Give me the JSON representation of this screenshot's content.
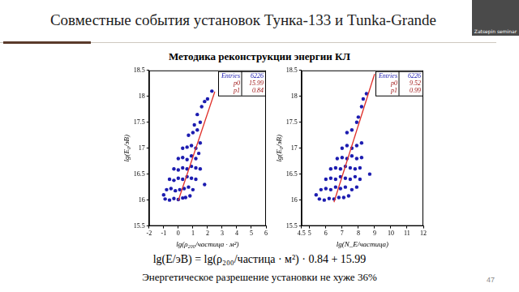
{
  "slide": {
    "title": "Совместные события установок Тунка-133 и Tunka-Grande",
    "subtitle": "Методика реконструкции энергии КЛ",
    "formula": "lg(E/эВ) = lg(ρ₂₀₀/частица · м²) · 0.84 + 15.99",
    "note": "Энергетическое разрешение установки не хуже 36%",
    "page": "47",
    "webcam_label": "Zatsepin seminar"
  },
  "chart_data": [
    {
      "type": "scatter",
      "x_label": "lg(ρ₂₀₀/частица · м²)",
      "y_label": "lg(E₀/эВ)",
      "xlim": [
        -2,
        6
      ],
      "xticks": [
        -2,
        -1,
        0,
        1,
        2,
        3,
        4,
        5,
        6
      ],
      "ylim": [
        15.5,
        18.5
      ],
      "yticks": [
        15.5,
        16,
        16.5,
        17,
        17.5,
        18,
        18.5
      ],
      "grid": false,
      "stats": [
        {
          "label": "Entries",
          "value": 6226
        },
        {
          "label": "p0",
          "value": 15.99
        },
        {
          "label": "p1",
          "value": 0.84
        }
      ],
      "series": [
        {
          "type": "scatter",
          "color": "#1c1cb0",
          "marker": "circle",
          "x": [
            -0.9,
            -0.6,
            -0.3,
            0,
            0.3,
            0.5,
            0.8,
            -0.8,
            -0.5,
            -0.2,
            0.1,
            0.4,
            0.7,
            1.0,
            -0.6,
            -0.3,
            0,
            0.3,
            0.6,
            0.9,
            1.2,
            -0.3,
            0,
            0.3,
            0.6,
            0.9,
            1.2,
            1.5,
            0,
            0.3,
            0.6,
            0.9,
            1.2,
            1.4,
            0.3,
            0.6,
            0.9,
            1.2,
            1.5,
            0.7,
            1.0,
            1.3,
            1.1,
            1.5,
            1.3,
            1.6,
            1.8,
            2.0,
            2.3,
            -1.0,
            1.8
          ],
          "values": [
            16.02,
            16.0,
            16.03,
            16.01,
            16.04,
            16.05,
            16.08,
            16.2,
            16.22,
            16.18,
            16.2,
            16.22,
            16.25,
            16.2,
            16.4,
            16.38,
            16.42,
            16.4,
            16.45,
            16.42,
            16.4,
            16.6,
            16.58,
            16.62,
            16.6,
            16.65,
            16.62,
            16.6,
            16.8,
            16.82,
            16.78,
            16.85,
            16.8,
            16.9,
            17.0,
            17.02,
            17.05,
            17.0,
            17.1,
            17.25,
            17.3,
            17.35,
            17.45,
            17.5,
            17.65,
            17.8,
            17.9,
            17.95,
            18.1,
            16.1,
            16.3
          ]
        },
        {
          "type": "line",
          "color": "#e0302a",
          "line_style": "solid",
          "x": [
            0,
            2.5
          ],
          "values": [
            15.99,
            18.09
          ]
        }
      ]
    },
    {
      "type": "scatter",
      "x_label": "lg(N_E/частица)",
      "y_label": "lg(E₀/эВ)",
      "xlim": [
        4.5,
        12
      ],
      "xticks": [
        4.5,
        5,
        6,
        7,
        8,
        9,
        10,
        11,
        12
      ],
      "ylim": [
        15.5,
        18.5
      ],
      "yticks": [
        15.5,
        16,
        16.5,
        17,
        17.5,
        18,
        18.5
      ],
      "grid": false,
      "stats": [
        {
          "label": "Entries",
          "value": 6226
        },
        {
          "label": "p0",
          "value": 9.52
        },
        {
          "label": "p1",
          "value": 0.99
        }
      ],
      "series": [
        {
          "type": "scatter",
          "color": "#1c1cb0",
          "marker": "circle",
          "x": [
            5.6,
            5.9,
            6.2,
            6.5,
            6.8,
            7.1,
            7.4,
            5.7,
            6.0,
            6.3,
            6.6,
            6.9,
            7.2,
            7.6,
            7.9,
            6.0,
            6.3,
            6.6,
            6.9,
            7.2,
            7.5,
            7.8,
            8.1,
            6.3,
            6.6,
            6.9,
            7.2,
            7.5,
            7.8,
            8.1,
            6.7,
            7.0,
            7.3,
            7.6,
            7.9,
            8.2,
            7.0,
            7.3,
            7.6,
            7.9,
            8.2,
            7.3,
            7.6,
            7.9,
            8.0,
            8.2,
            8.3,
            8.5,
            8.7,
            5.4
          ],
          "values": [
            16.02,
            16.0,
            16.03,
            16.02,
            16.05,
            16.05,
            16.08,
            16.2,
            16.22,
            16.2,
            16.25,
            16.22,
            16.25,
            16.2,
            16.25,
            16.4,
            16.42,
            16.4,
            16.45,
            16.42,
            16.4,
            16.45,
            16.4,
            16.6,
            16.62,
            16.6,
            16.65,
            16.62,
            16.6,
            16.62,
            16.8,
            16.82,
            16.8,
            16.85,
            16.8,
            16.82,
            17.0,
            17.05,
            17.0,
            17.05,
            17.1,
            17.3,
            17.35,
            17.5,
            17.6,
            17.8,
            17.95,
            18.05,
            16.5,
            16.1
          ]
        },
        {
          "type": "line",
          "color": "#e0302a",
          "line_style": "solid",
          "x": [
            6.5,
            9
          ],
          "values": [
            15.96,
            18.43
          ]
        }
      ]
    }
  ]
}
